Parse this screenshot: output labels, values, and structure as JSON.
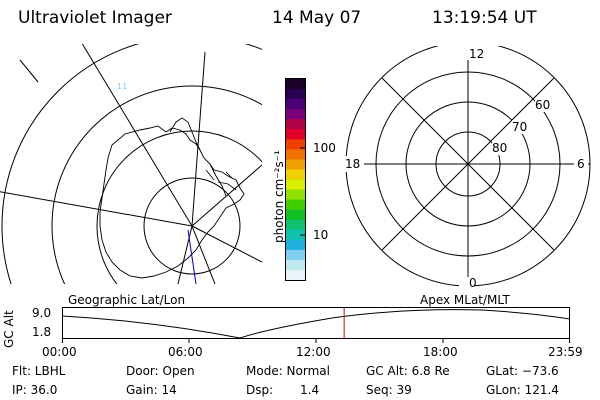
{
  "header": {
    "instrument": "Ultraviolet Imager",
    "date": "14 May 07",
    "time": "13:19:54 UT"
  },
  "colorbar": {
    "unit_label": "photon cm⁻²s⁻¹",
    "tick_100": "100",
    "tick_10": "10",
    "colors_top_to_bottom": [
      "#1a0028",
      "#2a0050",
      "#4b007a",
      "#7a007a",
      "#b00048",
      "#e0002a",
      "#f04000",
      "#f07000",
      "#f0a000",
      "#f0d000",
      "#d8f000",
      "#90e000",
      "#40d000",
      "#10c020",
      "#10c070",
      "#10c0b0",
      "#20b0e0",
      "#80d0f0",
      "#c0e8f0",
      "#e8f4f8"
    ]
  },
  "polar_plot": {
    "label_top": "12",
    "label_bottom": "0",
    "label_left": "18",
    "label_right": "6",
    "ring_labels": [
      "60",
      "70",
      "80"
    ]
  },
  "timeline": {
    "geo_label": "Geographic Lat/Lon",
    "apex_label": "Apex  MLat/MLT",
    "ylabel": "GC Alt",
    "y_max": "9.0",
    "y_min": "1.8",
    "x_ticks": [
      "00:00",
      "06:00",
      "12:00",
      "18:00",
      "23:59"
    ],
    "marker_time": "13:19:54"
  },
  "status": {
    "filter": "Flt: LBHL",
    "ip": "IP: 36.0",
    "door": "Door: Open",
    "gain": "Gain: 14",
    "mode": "Mode: Normal",
    "dsp_label": "Dsp:",
    "dsp_value": "1.4",
    "gc_alt": "GC Alt: 6.8 Re",
    "seq": "Seq: 39",
    "glat": "GLat: −73.6",
    "glon": "GLon: 121.4"
  }
}
